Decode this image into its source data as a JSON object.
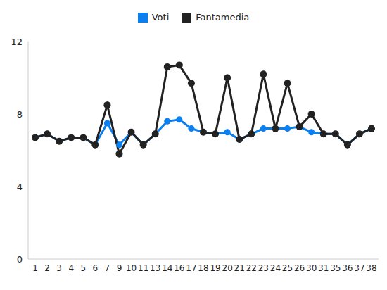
{
  "chart_data": {
    "type": "line",
    "categories": [
      "1",
      "2",
      "3",
      "4",
      "5",
      "6",
      "7",
      "9",
      "10",
      "11",
      "13",
      "14",
      "16",
      "17",
      "18",
      "19",
      "20",
      "21",
      "22",
      "23",
      "24",
      "25",
      "26",
      "30",
      "31",
      "35",
      "36",
      "37",
      "38"
    ],
    "series": [
      {
        "name": "Voti",
        "color": "#0a7ff0",
        "marker": "circle",
        "values": [
          6.7,
          6.9,
          6.5,
          6.7,
          6.7,
          6.3,
          7.5,
          6.3,
          7.0,
          6.3,
          6.9,
          7.6,
          7.7,
          7.2,
          7.0,
          6.9,
          7.0,
          6.6,
          6.9,
          7.2,
          7.2,
          7.2,
          7.3,
          7.0,
          6.9,
          6.9,
          6.3,
          6.9,
          7.2
        ]
      },
      {
        "name": "Fantamedia",
        "color": "#222222",
        "marker": "circle",
        "values": [
          6.7,
          6.9,
          6.5,
          6.7,
          6.7,
          6.3,
          8.5,
          5.8,
          7.0,
          6.3,
          6.9,
          10.6,
          10.7,
          9.7,
          7.0,
          6.9,
          10.0,
          6.6,
          6.9,
          10.2,
          7.2,
          9.7,
          7.3,
          8.0,
          6.9,
          6.9,
          6.3,
          6.9,
          7.2
        ]
      }
    ],
    "ylim": [
      0,
      12
    ],
    "yticks": [
      0,
      4,
      8,
      12
    ],
    "grid": false,
    "legend": "top"
  }
}
